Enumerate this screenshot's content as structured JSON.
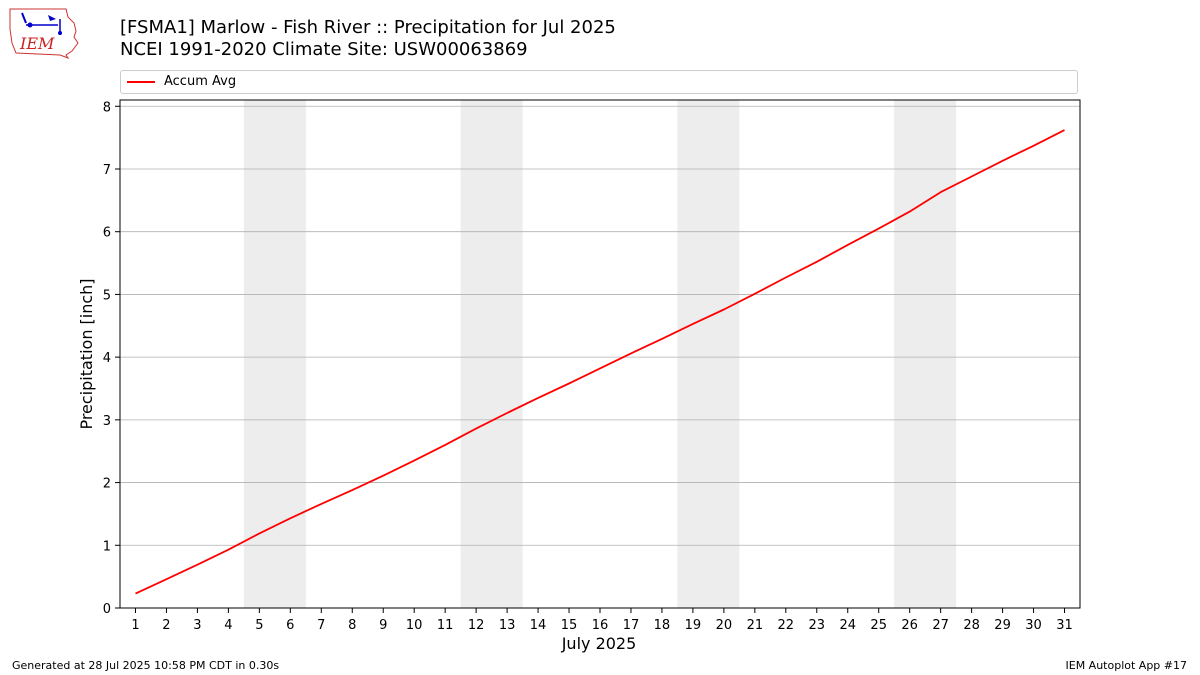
{
  "header": {
    "title_line1": "[FSMA1] Marlow - Fish River :: Precipitation for Jul 2025",
    "title_line2": "NCEI 1991-2020 Climate Site: USW00063869"
  },
  "logo": {
    "text": "IEM",
    "icon": "iem-iowa-map-logo"
  },
  "footer": {
    "left": "Generated at 28 Jul 2025 10:58 PM CDT in 0.30s",
    "right": "IEM Autoplot App #17"
  },
  "chart_data": {
    "type": "line",
    "xlabel": "July 2025",
    "ylabel": "Precipitation [inch]",
    "x": [
      1,
      2,
      3,
      4,
      5,
      6,
      7,
      8,
      9,
      10,
      11,
      12,
      13,
      14,
      15,
      16,
      17,
      18,
      19,
      20,
      21,
      22,
      23,
      24,
      25,
      26,
      27,
      28,
      29,
      30,
      31
    ],
    "xlim": [
      0.5,
      31.5
    ],
    "ylim": [
      0,
      8.1
    ],
    "yticks": [
      0,
      1,
      2,
      3,
      4,
      5,
      6,
      7,
      8
    ],
    "grid": "horizontal",
    "legend_position": "top",
    "weekend_shading": [
      [
        4.5,
        6.5
      ],
      [
        11.5,
        13.5
      ],
      [
        18.5,
        20.5
      ],
      [
        25.5,
        27.5
      ]
    ],
    "shading_color": "#ededed",
    "series": [
      {
        "name": "Accum Avg",
        "color": "#ff0000",
        "values": [
          0.23,
          0.46,
          0.69,
          0.93,
          1.19,
          1.43,
          1.66,
          1.88,
          2.11,
          2.35,
          2.6,
          2.86,
          3.11,
          3.35,
          3.58,
          3.82,
          4.06,
          4.29,
          4.53,
          4.76,
          5.01,
          5.27,
          5.52,
          5.79,
          6.05,
          6.32,
          6.63,
          6.88,
          7.13,
          7.37,
          7.62
        ]
      }
    ]
  }
}
